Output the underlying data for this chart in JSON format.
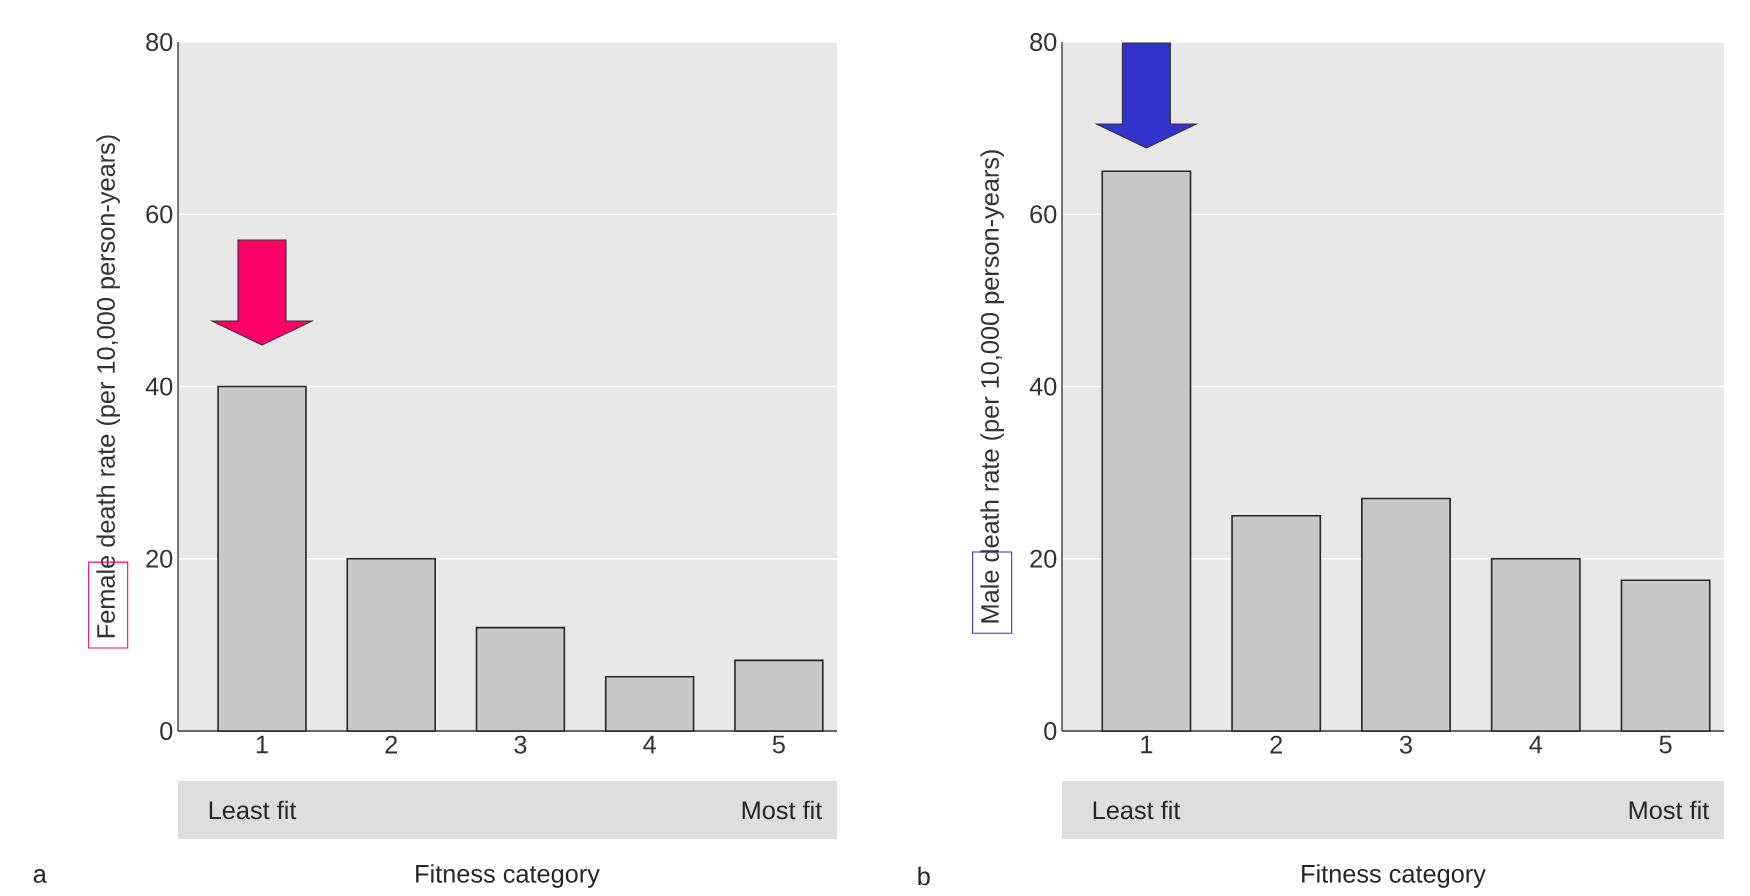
{
  "chart_data": [
    {
      "type": "bar",
      "categories": [
        "1",
        "2",
        "3",
        "4",
        "5"
      ],
      "values": [
        40,
        20,
        12,
        6.3,
        8.2
      ],
      "color": "#c8c8c8",
      "ylim": [
        0,
        80
      ],
      "yticks": [
        0,
        20,
        40,
        60,
        80
      ],
      "grid": "y",
      "xlabel": "Fitness category",
      "ylabel": "Female death rate (per 10,000 person-years)",
      "annotations": [
        "a",
        "Least fit",
        "Most fit"
      ]
    },
    {
      "type": "bar",
      "categories": [
        "1",
        "2",
        "3",
        "4",
        "5"
      ],
      "values": [
        65,
        25,
        27,
        20,
        17.5
      ],
      "color": "#c8c8c8",
      "ylim": [
        0,
        80
      ],
      "yticks": [
        0,
        20,
        40,
        60,
        80
      ],
      "grid": "y",
      "xlabel": "Fitness category",
      "ylabel": "Male death rate (per 10,000 person-years)",
      "annotations": [
        "b",
        "Least fit",
        "Most fit"
      ]
    }
  ]
}
